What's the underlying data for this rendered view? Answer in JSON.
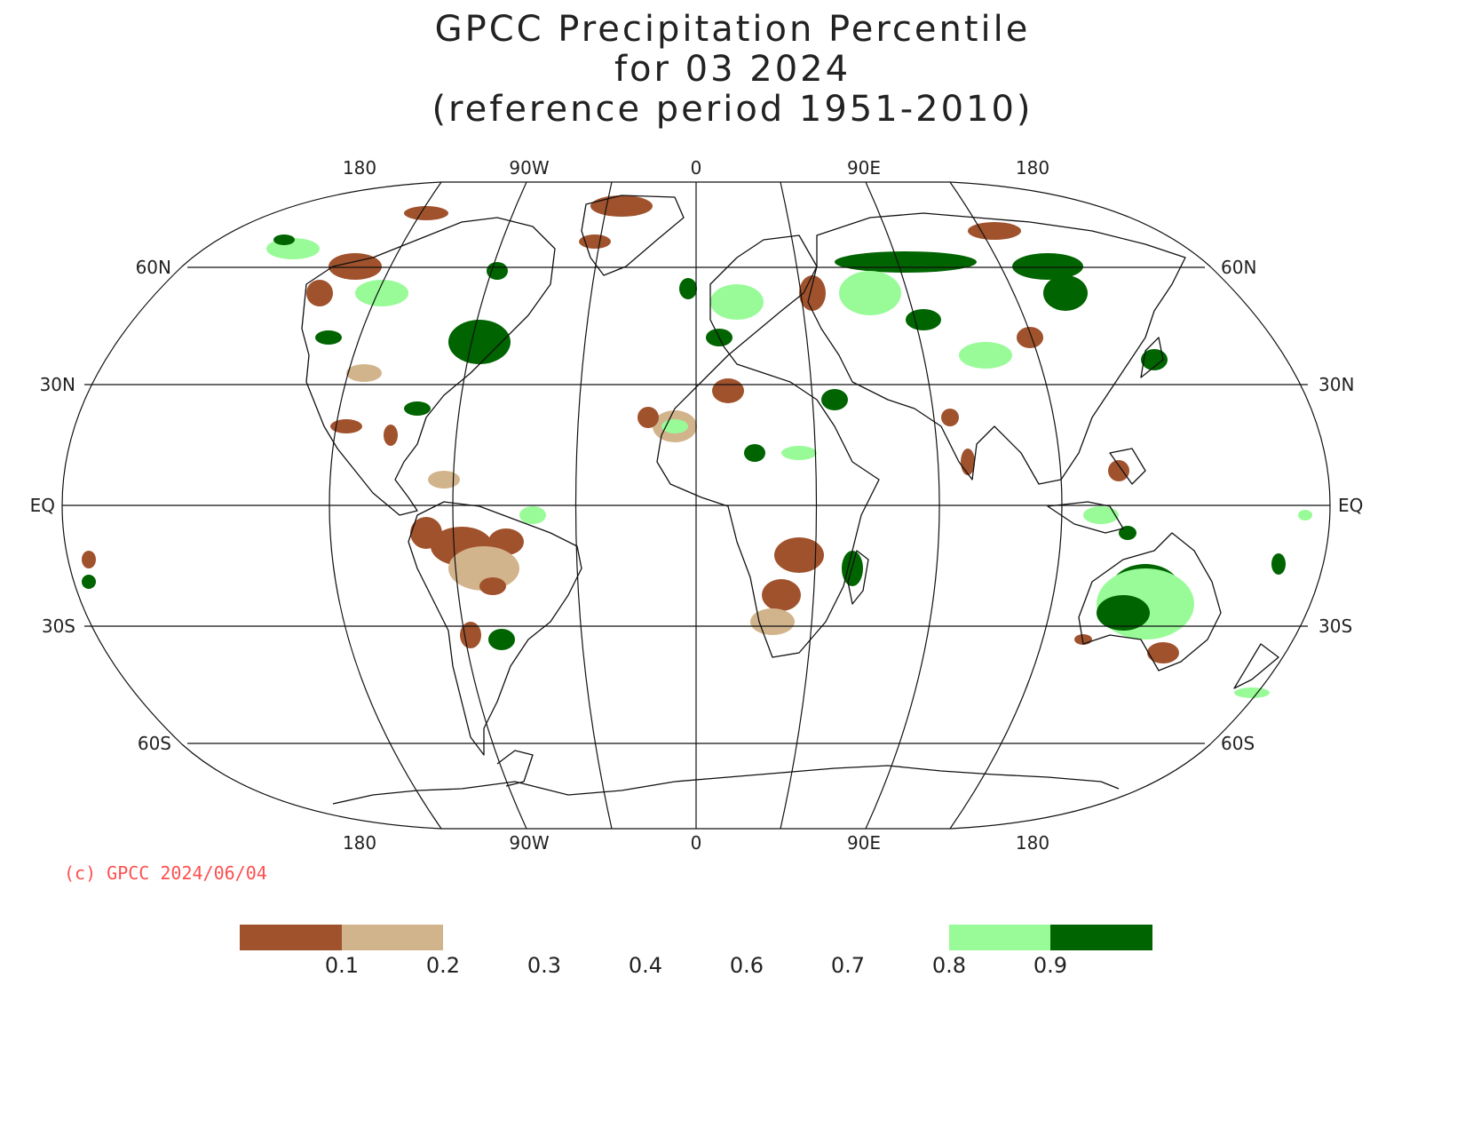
{
  "title": {
    "line1": "GPCC Precipitation Percentile",
    "line2": "for 03 2024",
    "line3": "(reference period 1951-2010)"
  },
  "longitude_labels": [
    "180",
    "90W",
    "0",
    "90E",
    "180"
  ],
  "latitude_labels": [
    "60N",
    "30N",
    "EQ",
    "30S",
    "60S"
  ],
  "copyright": "(c) GPCC 2024/06/04",
  "legend": {
    "boundaries": [
      "0.1",
      "0.2",
      "0.3",
      "0.4",
      "0.6",
      "0.7",
      "0.8",
      "0.9"
    ],
    "bins": [
      {
        "range": "<0.1",
        "color": "#a0522d"
      },
      {
        "range": "0.1-0.2",
        "color": "#d2b48c"
      },
      {
        "range": "0.8-0.9",
        "color": "#98fb98"
      },
      {
        "range": ">0.9",
        "color": "#006400"
      }
    ]
  },
  "colors": {
    "very_dry": "#a0522d",
    "dry": "#d2b48c",
    "wet": "#98fb98",
    "very_wet": "#006400"
  }
}
